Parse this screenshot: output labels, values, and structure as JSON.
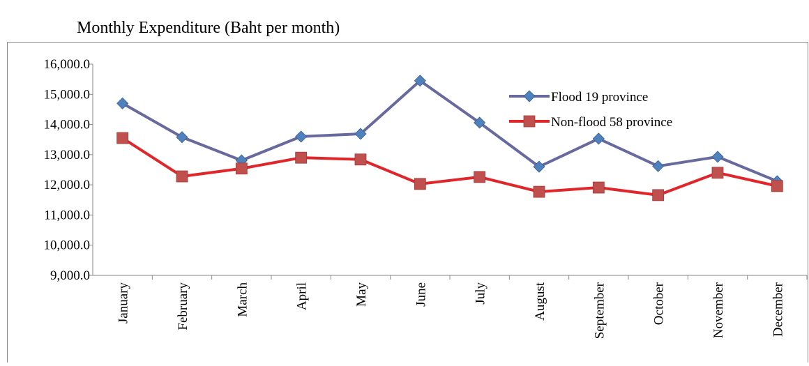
{
  "chart_data": {
    "type": "line",
    "title": "Monthly Expenditure (Baht per month)",
    "categories": [
      "January",
      "February",
      "March",
      "April",
      "May",
      "June",
      "July",
      "August",
      "September",
      "October",
      "November",
      "December"
    ],
    "series": [
      {
        "name": "Flood 19 province",
        "color": "#686a9e",
        "marker_color": "#4f81bd",
        "marker": "diamond",
        "values": [
          14700,
          13580,
          12810,
          13600,
          13690,
          15450,
          14060,
          12600,
          13530,
          12620,
          12930,
          12120
        ]
      },
      {
        "name": "Non-flood 58 province",
        "color": "#e0262b",
        "marker_color": "#c0504d",
        "marker": "square",
        "values": [
          13550,
          12280,
          12540,
          12900,
          12840,
          12030,
          12260,
          11770,
          11910,
          11660,
          12400,
          11960
        ]
      }
    ],
    "ylim": [
      9000,
      16000
    ],
    "yticks": [
      {
        "value": 9000,
        "label": "9,000.0"
      },
      {
        "value": 10000,
        "label": "10,000.0"
      },
      {
        "value": 11000,
        "label": "11,000.0"
      },
      {
        "value": 12000,
        "label": "12,000.0"
      },
      {
        "value": 13000,
        "label": "13,000.0"
      },
      {
        "value": 14000,
        "label": "14,000.0"
      },
      {
        "value": 15000,
        "label": "15,000.0"
      },
      {
        "value": 16000,
        "label": "16,000.0"
      }
    ],
    "grid": false,
    "legend": "upper right"
  }
}
